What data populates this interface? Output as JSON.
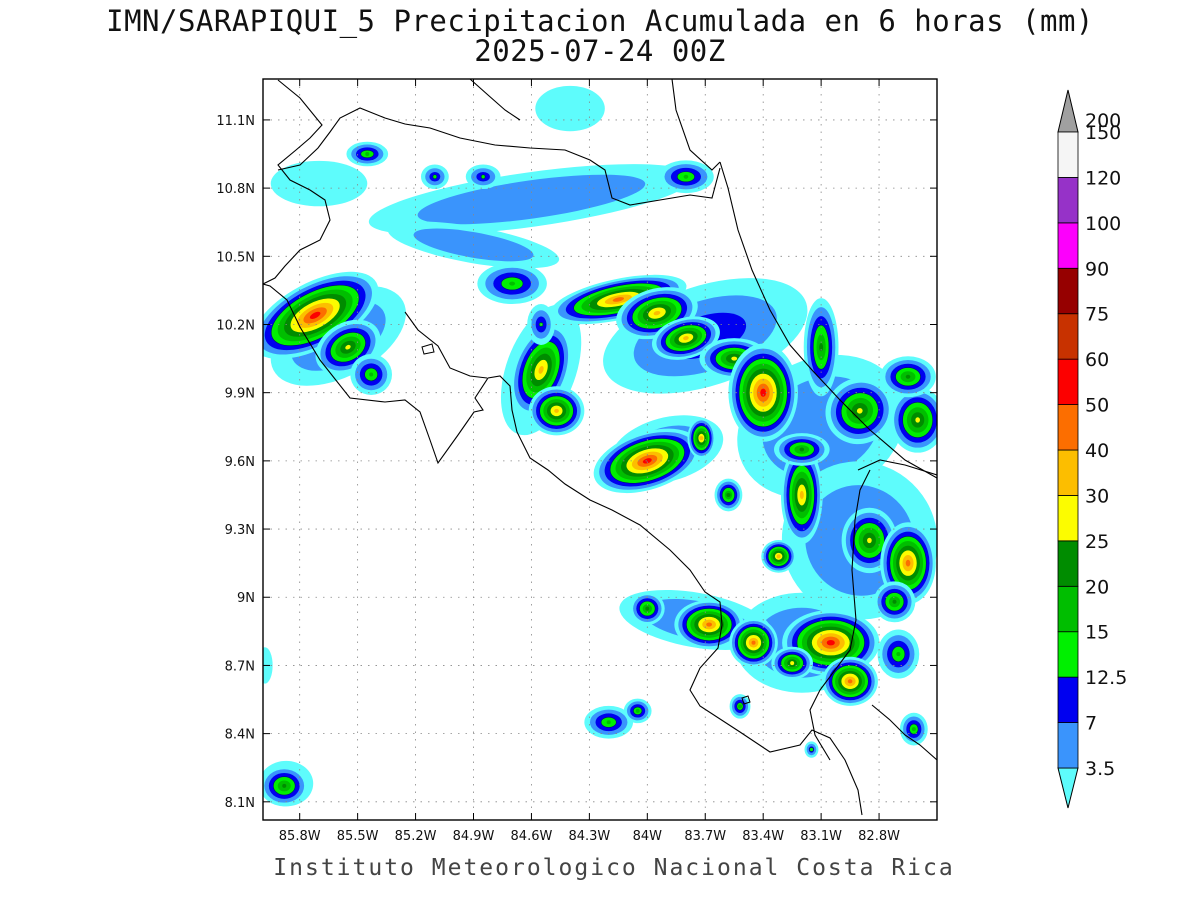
{
  "title": {
    "line1": "IMN/SARAPIQUI_5 Precipitacion Acumulada en 6 horas (mm)",
    "line2": "2025-07-24 00Z"
  },
  "credit": "Instituto Meteorologico Nacional Costa Rica",
  "map": {
    "lon_range": [
      -85.99,
      -82.5
    ],
    "lat_range": [
      8.02,
      11.28
    ],
    "lon_ticks": [
      {
        "value": -85.8,
        "label": "85.8W"
      },
      {
        "value": -85.5,
        "label": "85.5W"
      },
      {
        "value": -85.2,
        "label": "85.2W"
      },
      {
        "value": -84.9,
        "label": "84.9W"
      },
      {
        "value": -84.6,
        "label": "84.6W"
      },
      {
        "value": -84.3,
        "label": "84.3W"
      },
      {
        "value": -84.0,
        "label": "84W"
      },
      {
        "value": -83.7,
        "label": "83.7W"
      },
      {
        "value": -83.4,
        "label": "83.4W"
      },
      {
        "value": -83.1,
        "label": "83.1W"
      },
      {
        "value": -82.8,
        "label": "82.8W"
      }
    ],
    "lat_ticks": [
      {
        "value": 11.1,
        "label": "11.1N"
      },
      {
        "value": 10.8,
        "label": "10.8N"
      },
      {
        "value": 10.5,
        "label": "10.5N"
      },
      {
        "value": 10.2,
        "label": "10.2N"
      },
      {
        "value": 9.9,
        "label": "9.9N"
      },
      {
        "value": 9.6,
        "label": "9.6N"
      },
      {
        "value": 9.3,
        "label": "9.3N"
      },
      {
        "value": 9.0,
        "label": "9N"
      },
      {
        "value": 8.7,
        "label": "8.7N"
      },
      {
        "value": 8.4,
        "label": "8.4N"
      },
      {
        "value": 8.1,
        "label": "8.1N"
      }
    ],
    "grid": true
  },
  "colorbar": {
    "levels": [
      {
        "label": "3.5",
        "color": "#5efcfc"
      },
      {
        "label": "7",
        "color": "#3a94fc"
      },
      {
        "label": "12.5",
        "color": "#0000f0"
      },
      {
        "label": "15",
        "color": "#00f000"
      },
      {
        "label": "20",
        "color": "#00be00"
      },
      {
        "label": "25",
        "color": "#008c00"
      },
      {
        "label": "30",
        "color": "#fcfc00"
      },
      {
        "label": "40",
        "color": "#fcbe00"
      },
      {
        "label": "50",
        "color": "#fc6e00"
      },
      {
        "label": "60",
        "color": "#fc0000"
      },
      {
        "label": "75",
        "color": "#c83200"
      },
      {
        "label": "90",
        "color": "#960000"
      },
      {
        "label": "100",
        "color": "#fc00fc"
      },
      {
        "label": "120",
        "color": "#9632c8"
      },
      {
        "label": "150",
        "color": "#f5f5f5"
      },
      {
        "label": "200",
        "color": "#a0a0a0"
      }
    ]
  },
  "precip_cells": [
    {
      "lon": -85.72,
      "lat": 10.24,
      "rx": 0.2,
      "ry": 0.08,
      "rot": 28,
      "peak": 9
    },
    {
      "lon": -85.55,
      "lat": 10.1,
      "rx": 0.1,
      "ry": 0.06,
      "rot": 30,
      "peak": 6
    },
    {
      "lon": -85.43,
      "lat": 9.98,
      "rx": 0.06,
      "ry": 0.05,
      "rot": 0,
      "peak": 4
    },
    {
      "lon": -84.55,
      "lat": 10.0,
      "rx": 0.08,
      "ry": 0.12,
      "rot": -20,
      "peak": 7
    },
    {
      "lon": -84.47,
      "lat": 9.82,
      "rx": 0.08,
      "ry": 0.06,
      "rot": 0,
      "peak": 7
    },
    {
      "lon": -84.15,
      "lat": 10.31,
      "rx": 0.2,
      "ry": 0.05,
      "rot": 12,
      "peak": 8
    },
    {
      "lon": -83.95,
      "lat": 10.25,
      "rx": 0.12,
      "ry": 0.06,
      "rot": 15,
      "peak": 7
    },
    {
      "lon": -83.8,
      "lat": 10.14,
      "rx": 0.1,
      "ry": 0.05,
      "rot": 15,
      "peak": 7
    },
    {
      "lon": -83.55,
      "lat": 10.05,
      "rx": 0.1,
      "ry": 0.05,
      "rot": 0,
      "peak": 6
    },
    {
      "lon": -83.4,
      "lat": 9.9,
      "rx": 0.1,
      "ry": 0.12,
      "rot": 0,
      "peak": 9
    },
    {
      "lon": -83.1,
      "lat": 10.1,
      "rx": 0.05,
      "ry": 0.12,
      "rot": 0,
      "peak": 5
    },
    {
      "lon": -82.9,
      "lat": 9.82,
      "rx": 0.1,
      "ry": 0.08,
      "rot": 30,
      "peak": 6
    },
    {
      "lon": -82.6,
      "lat": 9.78,
      "rx": 0.08,
      "ry": 0.08,
      "rot": 0,
      "peak": 6
    },
    {
      "lon": -82.65,
      "lat": 9.97,
      "rx": 0.08,
      "ry": 0.05,
      "rot": 0,
      "peak": 5
    },
    {
      "lon": -84.0,
      "lat": 9.6,
      "rx": 0.16,
      "ry": 0.07,
      "rot": 18,
      "peak": 9
    },
    {
      "lon": -83.72,
      "lat": 9.7,
      "rx": 0.04,
      "ry": 0.05,
      "rot": 0,
      "peak": 7
    },
    {
      "lon": -83.2,
      "lat": 9.45,
      "rx": 0.06,
      "ry": 0.12,
      "rot": 0,
      "peak": 7
    },
    {
      "lon": -83.2,
      "lat": 9.65,
      "rx": 0.08,
      "ry": 0.04,
      "rot": 0,
      "peak": 5
    },
    {
      "lon": -83.32,
      "lat": 9.18,
      "rx": 0.05,
      "ry": 0.04,
      "rot": 0,
      "peak": 7
    },
    {
      "lon": -82.85,
      "lat": 9.25,
      "rx": 0.08,
      "ry": 0.08,
      "rot": 0,
      "peak": 6
    },
    {
      "lon": -82.65,
      "lat": 9.15,
      "rx": 0.08,
      "ry": 0.1,
      "rot": 0,
      "peak": 8
    },
    {
      "lon": -82.72,
      "lat": 8.98,
      "rx": 0.06,
      "ry": 0.05,
      "rot": 0,
      "peak": 5
    },
    {
      "lon": -83.68,
      "lat": 8.88,
      "rx": 0.1,
      "ry": 0.06,
      "rot": 0,
      "peak": 8
    },
    {
      "lon": -83.45,
      "lat": 8.8,
      "rx": 0.07,
      "ry": 0.06,
      "rot": 0,
      "peak": 8
    },
    {
      "lon": -83.05,
      "lat": 8.8,
      "rx": 0.14,
      "ry": 0.08,
      "rot": 0,
      "peak": 9
    },
    {
      "lon": -82.95,
      "lat": 8.63,
      "rx": 0.08,
      "ry": 0.06,
      "rot": 0,
      "peak": 8
    },
    {
      "lon": -83.25,
      "lat": 8.71,
      "rx": 0.06,
      "ry": 0.04,
      "rot": 0,
      "peak": 6
    },
    {
      "lon": -84.0,
      "lat": 8.95,
      "rx": 0.05,
      "ry": 0.04,
      "rot": 0,
      "peak": 5
    },
    {
      "lon": -82.7,
      "lat": 8.75,
      "rx": 0.06,
      "ry": 0.06,
      "rot": 0,
      "peak": 4
    },
    {
      "lon": -84.2,
      "lat": 8.45,
      "rx": 0.07,
      "ry": 0.04,
      "rot": 0,
      "peak": 4
    },
    {
      "lon": -84.05,
      "lat": 8.5,
      "rx": 0.04,
      "ry": 0.03,
      "rot": 0,
      "peak": 4
    },
    {
      "lon": -85.88,
      "lat": 8.17,
      "rx": 0.07,
      "ry": 0.05,
      "rot": 0,
      "peak": 5
    },
    {
      "lon": -82.62,
      "lat": 8.42,
      "rx": 0.04,
      "ry": 0.04,
      "rot": 0,
      "peak": 4
    },
    {
      "lon": -83.52,
      "lat": 8.52,
      "rx": 0.03,
      "ry": 0.03,
      "rot": 0,
      "peak": 4
    },
    {
      "lon": -83.58,
      "lat": 9.45,
      "rx": 0.04,
      "ry": 0.04,
      "rot": 0,
      "peak": 5
    },
    {
      "lon": -84.85,
      "lat": 10.85,
      "rx": 0.05,
      "ry": 0.03,
      "rot": 0,
      "peak": 3
    },
    {
      "lon": -85.1,
      "lat": 10.85,
      "rx": 0.04,
      "ry": 0.03,
      "rot": 0,
      "peak": 3
    },
    {
      "lon": -84.55,
      "lat": 10.2,
      "rx": 0.04,
      "ry": 0.05,
      "rot": 0,
      "peak": 3
    },
    {
      "lon": -84.7,
      "lat": 10.38,
      "rx": 0.1,
      "ry": 0.05,
      "rot": 0,
      "peak": 4
    },
    {
      "lon": -85.45,
      "lat": 10.95,
      "rx": 0.06,
      "ry": 0.03,
      "rot": 0,
      "peak": 4
    },
    {
      "lon": -83.8,
      "lat": 10.85,
      "rx": 0.08,
      "ry": 0.04,
      "rot": 0,
      "peak": 4
    },
    {
      "lon": -83.15,
      "lat": 8.33,
      "rx": 0.02,
      "ry": 0.02,
      "rot": 0,
      "peak": 3
    }
  ],
  "precip_blobs": [
    {
      "lon": -84.6,
      "lat": 10.75,
      "rx": 0.85,
      "ry": 0.12,
      "rot": 8,
      "level": 1
    },
    {
      "lon": -84.9,
      "lat": 10.55,
      "rx": 0.45,
      "ry": 0.08,
      "rot": -10,
      "level": 1
    },
    {
      "lon": -85.7,
      "lat": 10.82,
      "rx": 0.25,
      "ry": 0.1,
      "rot": 0,
      "level": 0
    },
    {
      "lon": -84.4,
      "lat": 11.15,
      "rx": 0.18,
      "ry": 0.1,
      "rot": 0,
      "level": 0
    },
    {
      "lon": -83.7,
      "lat": 10.15,
      "rx": 0.55,
      "ry": 0.22,
      "rot": 18,
      "level": 2
    },
    {
      "lon": -83.1,
      "lat": 9.75,
      "rx": 0.45,
      "ry": 0.3,
      "rot": 25,
      "level": 1
    },
    {
      "lon": -83.9,
      "lat": 9.65,
      "rx": 0.3,
      "ry": 0.14,
      "rot": 15,
      "level": 1
    },
    {
      "lon": -82.9,
      "lat": 9.25,
      "rx": 0.4,
      "ry": 0.35,
      "rot": 30,
      "level": 1
    },
    {
      "lon": -83.2,
      "lat": 8.8,
      "rx": 0.35,
      "ry": 0.22,
      "rot": 0,
      "level": 1
    },
    {
      "lon": -83.75,
      "lat": 8.9,
      "rx": 0.4,
      "ry": 0.12,
      "rot": -10,
      "level": 1
    },
    {
      "lon": -84.55,
      "lat": 10.0,
      "rx": 0.18,
      "ry": 0.3,
      "rot": -20,
      "level": 1
    },
    {
      "lon": -85.6,
      "lat": 10.15,
      "rx": 0.38,
      "ry": 0.18,
      "rot": 28,
      "level": 1
    },
    {
      "lon": -85.87,
      "lat": 8.18,
      "rx": 0.14,
      "ry": 0.1,
      "rot": 0,
      "level": 0
    },
    {
      "lon": -85.98,
      "lat": 8.7,
      "rx": 0.04,
      "ry": 0.08,
      "rot": 0,
      "level": 0
    }
  ]
}
